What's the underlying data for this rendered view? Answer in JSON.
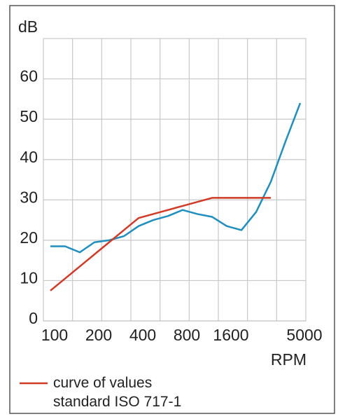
{
  "chart_data": {
    "type": "line",
    "y_label": "dB",
    "x_label": "RPM",
    "categories": [
      "100",
      null,
      null,
      "200",
      null,
      null,
      "400",
      null,
      null,
      "800",
      null,
      null,
      "1600",
      null,
      null,
      null,
      null,
      "5000"
    ],
    "ylim": [
      0,
      70
    ],
    "yticks": [
      0,
      10,
      20,
      30,
      40,
      50,
      60
    ],
    "grid": true,
    "series": [
      {
        "color": "#1e8fbf",
        "values": [
          18.5,
          18.5,
          17,
          19.5,
          20,
          21,
          23.5,
          25,
          26,
          27.5,
          26.5,
          25.8,
          23.5,
          22.5,
          27,
          34.5,
          44.5,
          54
        ]
      },
      {
        "name": "curve of values standard ISO 717-1",
        "color": "#d23a28",
        "values": [
          7.5,
          10.5,
          13.5,
          16.5,
          19.5,
          22.5,
          25.5,
          26.5,
          27.5,
          28.5,
          29.5,
          30.5,
          30.5,
          30.5,
          30.5,
          30.5,
          null,
          null
        ]
      }
    ]
  }
}
